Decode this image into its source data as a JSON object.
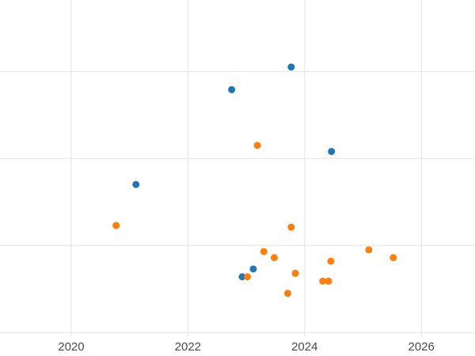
{
  "chart_data": {
    "type": "scatter",
    "title": "",
    "xlabel": "",
    "ylabel": "",
    "grid": true,
    "legend_position": "none",
    "background": "#ffffff",
    "grid_color": "#e4e4e4",
    "tick_label_color": "#4a4a4a",
    "tick_font_size": 15,
    "marker_size": 9,
    "x_ticks": [
      2020,
      2022,
      2024,
      2026
    ],
    "x_tick_labels": [
      "2020",
      "2022",
      "2024",
      "2026"
    ],
    "xlim": [
      2018.78,
      2026.92
    ],
    "ylim": [
      -0.27,
      3.82
    ],
    "y_gridlines": [
      0,
      1,
      2,
      3
    ],
    "series": [
      {
        "name": "blue",
        "color": "#1f77b4",
        "points": [
          [
            2023.77,
            3.05
          ],
          [
            2022.75,
            2.79
          ],
          [
            2024.46,
            2.08
          ],
          [
            2021.11,
            1.7
          ],
          [
            2023.12,
            0.73
          ],
          [
            2022.93,
            0.64
          ]
        ]
      },
      {
        "name": "orange",
        "color": "#ff7f0e",
        "points": [
          [
            2023.19,
            2.15
          ],
          [
            2020.77,
            1.23
          ],
          [
            2023.77,
            1.21
          ],
          [
            2025.1,
            0.95
          ],
          [
            2023.3,
            0.93
          ],
          [
            2023.48,
            0.86
          ],
          [
            2025.52,
            0.86
          ],
          [
            2024.45,
            0.82
          ],
          [
            2023.84,
            0.68
          ],
          [
            2023.02,
            0.64
          ],
          [
            2024.31,
            0.59
          ],
          [
            2024.41,
            0.59
          ],
          [
            2023.71,
            0.45
          ]
        ]
      }
    ]
  }
}
